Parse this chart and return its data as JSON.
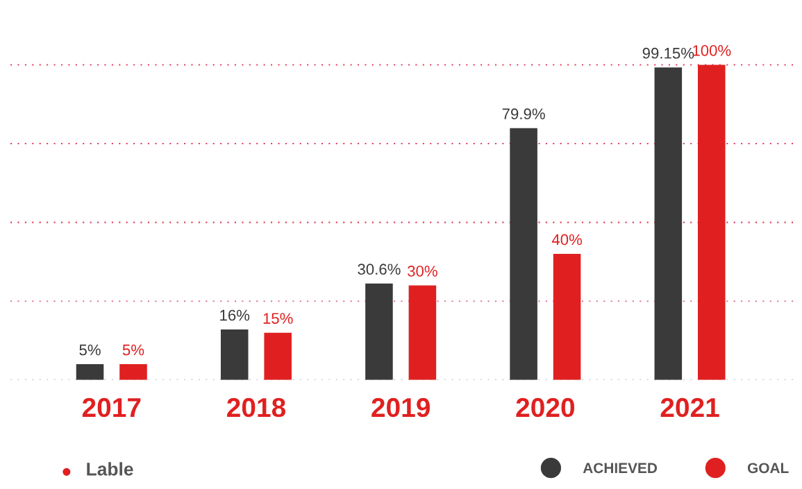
{
  "chart_data": {
    "type": "bar",
    "categories": [
      "2017",
      "2018",
      "2019",
      "2020",
      "2021"
    ],
    "series": [
      {
        "name": "ACHIEVED",
        "color": "#3a3a3a",
        "values": [
          5,
          16,
          30.6,
          79.9,
          99.15
        ],
        "value_labels": [
          "5%",
          "16%",
          "30.6%",
          "79.9%",
          "99.15%"
        ]
      },
      {
        "name": "GOAL",
        "color": "#e02020",
        "values": [
          5,
          15,
          30,
          40,
          100
        ],
        "value_labels": [
          "5%",
          "15%",
          "30%",
          "40%",
          "100%"
        ]
      }
    ],
    "tick_labels": "x",
    "ref_lines": [
      {
        "axis": "y",
        "value": 0,
        "color": "#b0b8c8",
        "line_style": "dotted"
      },
      {
        "axis": "y",
        "value": 25,
        "color": "#e070a0",
        "line_style": "dotted"
      },
      {
        "axis": "y",
        "value": 50,
        "color": "#e04060",
        "line_style": "dotted"
      },
      {
        "axis": "y",
        "value": 75,
        "color": "#e04060",
        "line_style": "dotted"
      },
      {
        "axis": "y",
        "value": 100,
        "color": "#e04060",
        "line_style": "dotted"
      }
    ],
    "legend": "bottom right",
    "annotations": [
      "Lable"
    ]
  }
}
